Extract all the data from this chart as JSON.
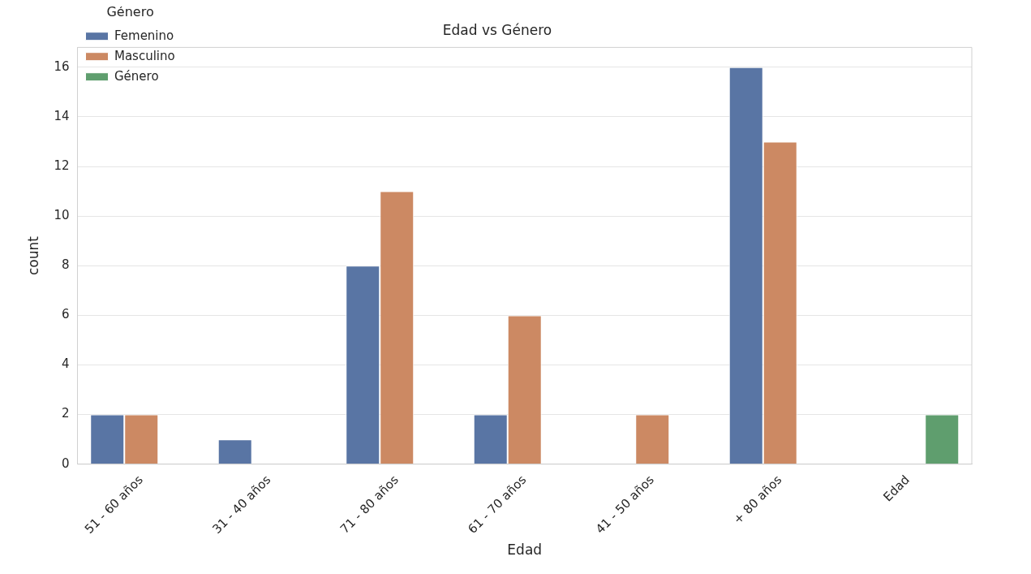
{
  "chart_data": {
    "type": "bar",
    "title": "Edad vs Género",
    "xlabel": "Edad",
    "ylabel": "count",
    "legend_title": "Género",
    "categories": [
      "51 - 60 años",
      "31 - 40 años",
      "71 - 80 años",
      "61 - 70 años",
      "41 - 50 años",
      "+ 80 años",
      "Edad"
    ],
    "series": [
      {
        "name": "Femenino",
        "color": "#5975a4",
        "values": [
          2,
          1,
          8,
          2,
          null,
          16,
          null
        ]
      },
      {
        "name": "Masculino",
        "color": "#cc8963",
        "values": [
          2,
          null,
          11,
          6,
          2,
          13,
          null
        ]
      },
      {
        "name": "Género",
        "color": "#5f9e6e",
        "values": [
          null,
          null,
          null,
          null,
          null,
          null,
          2
        ]
      }
    ],
    "ylim": [
      0,
      16.8
    ],
    "yticks": [
      0,
      2,
      4,
      6,
      8,
      10,
      12,
      14,
      16
    ],
    "grid": "y",
    "legend": "top left"
  }
}
